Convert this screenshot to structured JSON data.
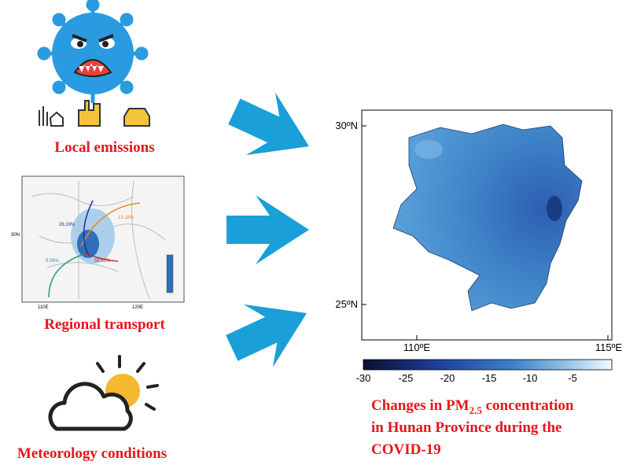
{
  "panels": [
    {
      "label": "Local emissions"
    },
    {
      "label": "Regional transport",
      "inset": {
        "percentages": [
          "26.19%",
          "13.18%",
          "55.65%",
          "5.08%"
        ],
        "lat_label": "30N",
        "lon_labels": [
          "110E",
          "120E"
        ]
      }
    },
    {
      "label": "Meteorology conditions"
    }
  ],
  "map": {
    "lat_labels": [
      "30ºN",
      "25ºN"
    ],
    "lon_labels": [
      "110ºE",
      "115ºE"
    ],
    "colorbar_ticks": [
      -30,
      -25,
      -20,
      -15,
      -10,
      -5
    ]
  },
  "caption": {
    "prefix": "Changes in PM",
    "subscript": "2.5",
    "suffix": " concentration",
    "lines": [
      "in Hunan Province during the",
      "COVID-19"
    ]
  }
}
